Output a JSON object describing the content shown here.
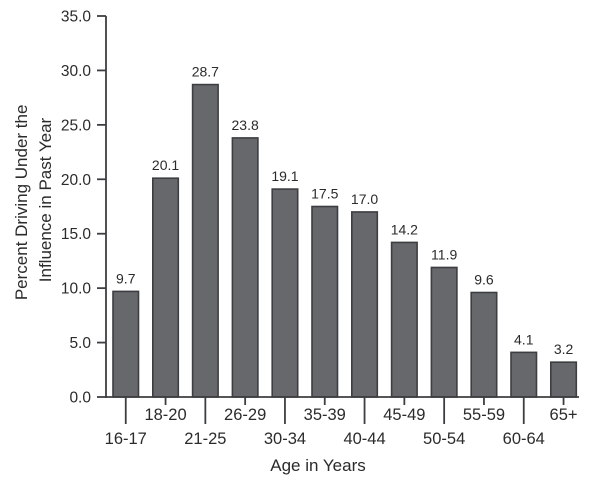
{
  "chart_data": {
    "type": "bar",
    "title": "",
    "xlabel": "Age in Years",
    "ylabel": "Percent Driving Under the Influence in Past Year",
    "ylabel_lines": [
      "Percent Driving Under the",
      "Influence in Past Year"
    ],
    "categories": [
      "16-17",
      "18-20",
      "21-25",
      "26-29",
      "30-34",
      "35-39",
      "40-44",
      "45-49",
      "50-54",
      "55-59",
      "60-64",
      "65+"
    ],
    "values": [
      9.7,
      20.1,
      28.7,
      23.8,
      19.1,
      17.5,
      17.0,
      14.2,
      11.9,
      9.6,
      4.1,
      3.2
    ],
    "value_labels": [
      "9.7",
      "20.1",
      "28.7",
      "23.8",
      "19.1",
      "17.5",
      "17.0",
      "14.2",
      "11.9",
      "9.6",
      "4.1",
      "3.2"
    ],
    "ylim": [
      0,
      35
    ],
    "yticks": [
      0,
      5,
      10,
      15,
      20,
      25,
      30,
      35
    ],
    "ytick_labels": [
      "0.0",
      "5.0",
      "10.0",
      "15.0",
      "20.0",
      "25.0",
      "30.0",
      "35.0"
    ],
    "grid": false,
    "legend": null,
    "label_rows": "staggered-two-rows",
    "colors": {
      "bar_fill": "#66686c",
      "bar_stroke": "#3c3e41",
      "axis": "#3c3e41",
      "text": "#2b2b2b",
      "background": "#ffffff"
    }
  }
}
